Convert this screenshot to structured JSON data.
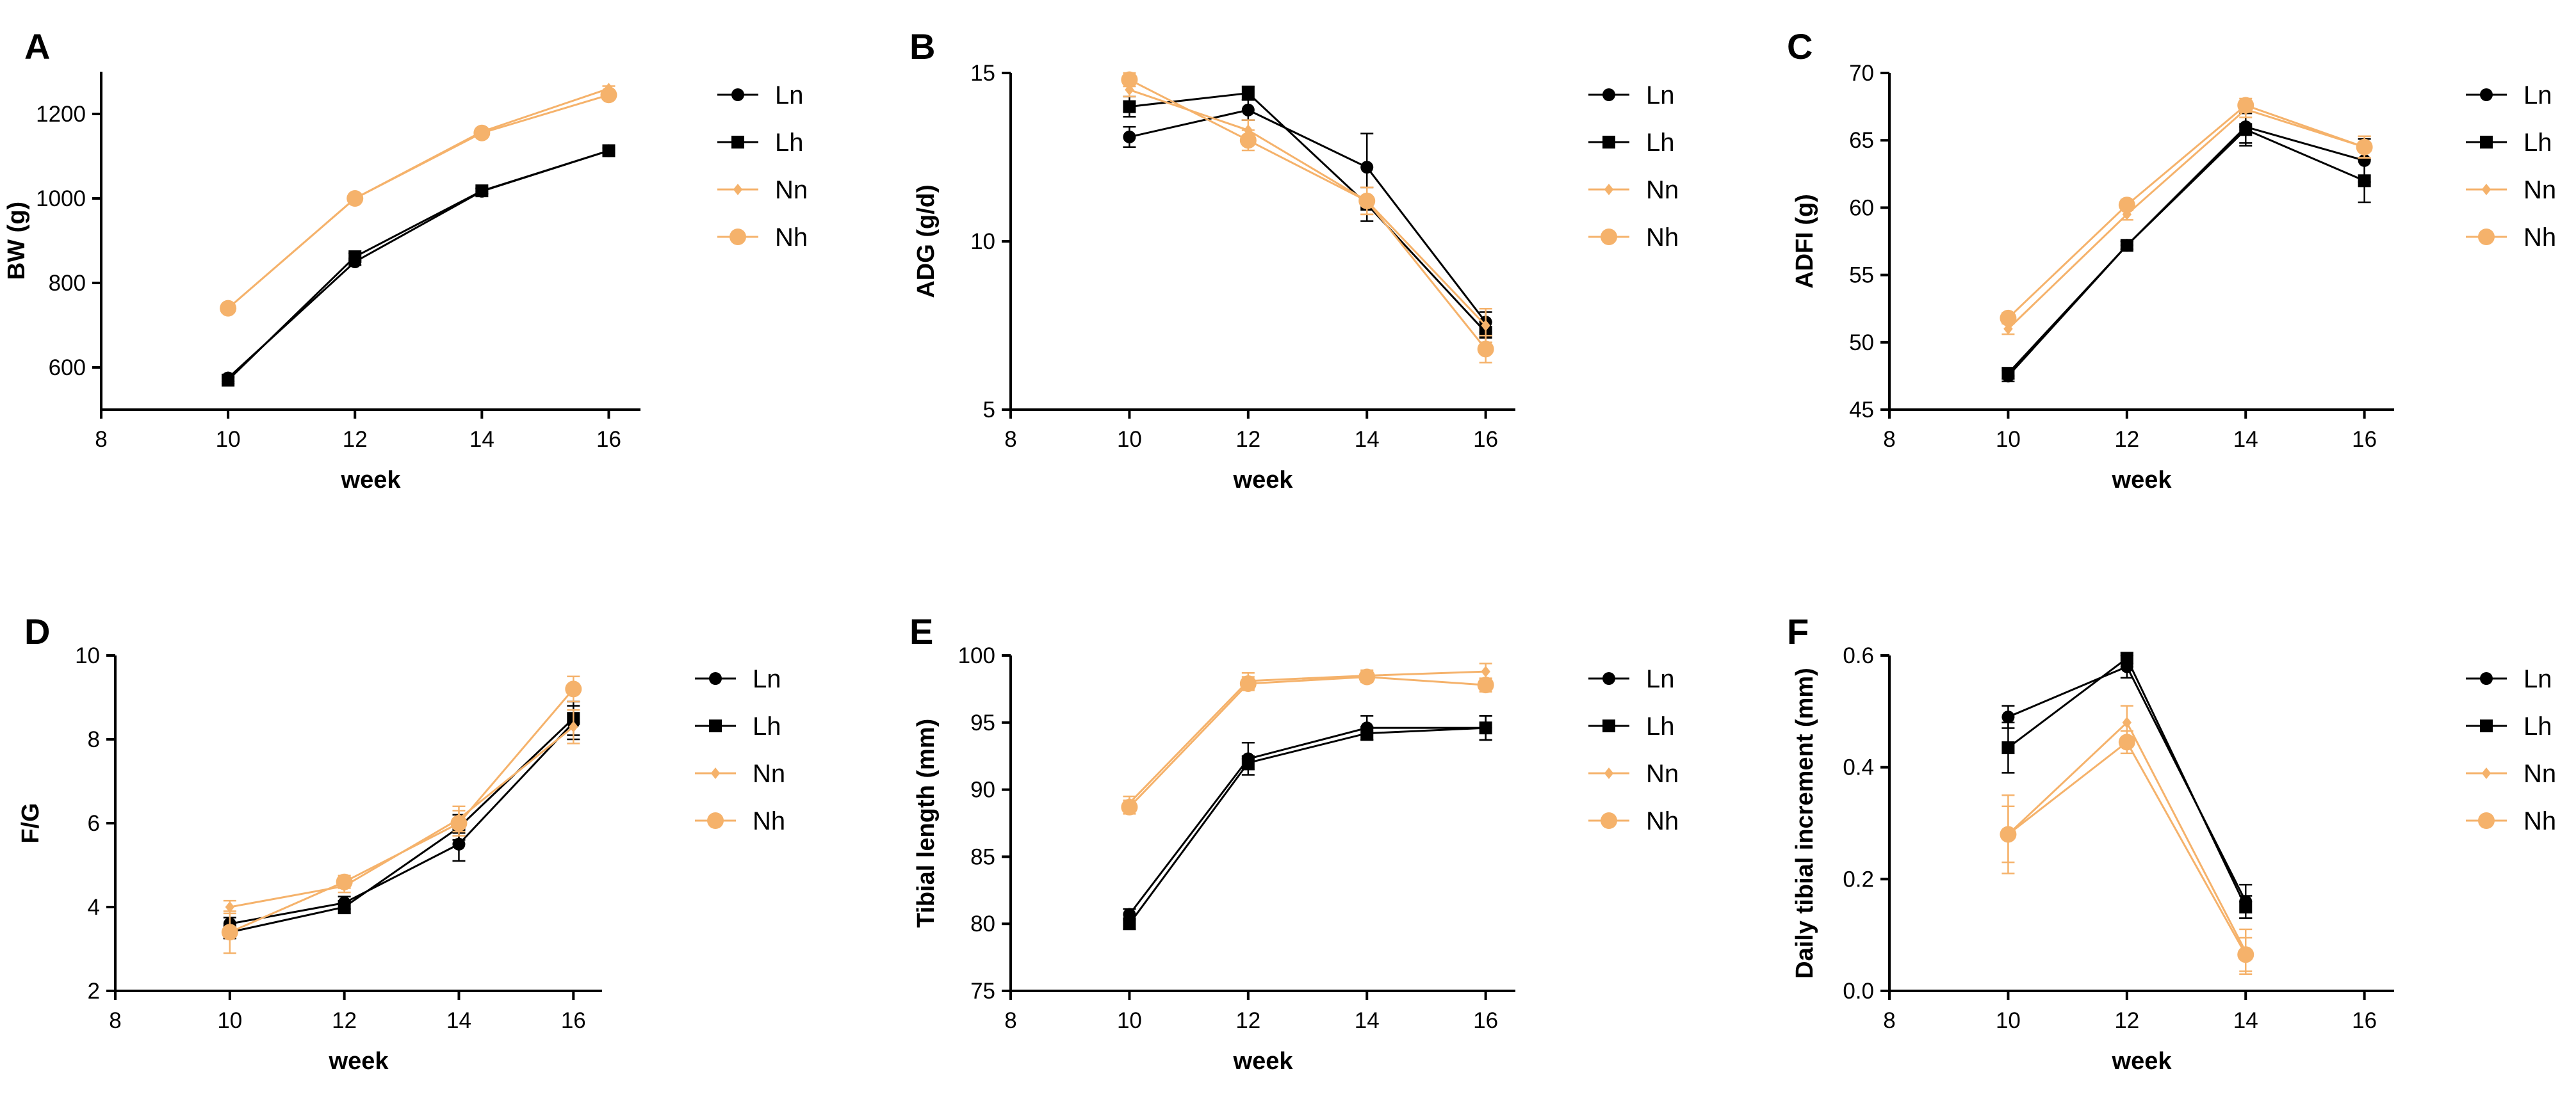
{
  "colors": {
    "L": "#000000",
    "N": "#f5b26b"
  },
  "chart_data": [
    {
      "panel": "A",
      "type": "line",
      "ylabel": "BW (g)",
      "xlabel": "week",
      "xlim": [
        8,
        16.5
      ],
      "ylim": [
        500,
        1300
      ],
      "xticks": [
        "8",
        "10",
        "12",
        "14",
        "16"
      ],
      "yticks": [
        "600",
        "800",
        "1000",
        "1200"
      ],
      "legend": [
        "Ln",
        "Lh",
        "Nn",
        "Nh"
      ],
      "x": [
        10,
        12,
        14,
        16
      ],
      "series": [
        {
          "name": "Ln",
          "values": [
            575,
            850,
            1017,
            1113
          ],
          "err": [
            8,
            8,
            6,
            6
          ]
        },
        {
          "name": "Lh",
          "values": [
            570,
            862,
            1018,
            1113
          ],
          "err": [
            8,
            8,
            6,
            6
          ]
        },
        {
          "name": "Nn",
          "values": [
            740,
            1000,
            1158,
            1260
          ],
          "err": [
            5,
            5,
            6,
            6
          ]
        },
        {
          "name": "Nh",
          "values": [
            740,
            1000,
            1155,
            1245
          ],
          "err": [
            5,
            5,
            6,
            6
          ]
        }
      ]
    },
    {
      "panel": "B",
      "type": "line",
      "ylabel": "ADG (g/d)",
      "xlabel": "week",
      "xlim": [
        8,
        16.5
      ],
      "ylim": [
        5,
        15
      ],
      "xticks": [
        "8",
        "10",
        "12",
        "14",
        "16"
      ],
      "yticks": [
        "5",
        "10",
        "15"
      ],
      "legend": [
        "Ln",
        "Lh",
        "Nn",
        "Nh"
      ],
      "x": [
        10,
        12,
        14,
        16
      ],
      "series": [
        {
          "name": "Ln",
          "values": [
            13.1,
            13.9,
            12.2,
            7.6
          ],
          "err": [
            0.3,
            0.3,
            1.0,
            0.3
          ]
        },
        {
          "name": "Lh",
          "values": [
            14.0,
            14.4,
            11.1,
            7.3
          ],
          "err": [
            0.3,
            0.2,
            0.5,
            0.3
          ]
        },
        {
          "name": "Nn",
          "values": [
            14.5,
            13.3,
            11.2,
            7.5
          ],
          "err": [
            0.2,
            0.3,
            0.4,
            0.5
          ]
        },
        {
          "name": "Nh",
          "values": [
            14.8,
            13.0,
            11.2,
            6.8
          ],
          "err": [
            0.2,
            0.3,
            0.4,
            0.4
          ]
        }
      ]
    },
    {
      "panel": "C",
      "type": "line",
      "ylabel": "ADFI (g)",
      "xlabel": "week",
      "xlim": [
        8,
        16.5
      ],
      "ylim": [
        45,
        70
      ],
      "xticks": [
        "8",
        "10",
        "12",
        "14",
        "16"
      ],
      "yticks": [
        "45",
        "50",
        "55",
        "60",
        "65",
        "70"
      ],
      "legend": [
        "Ln",
        "Lh",
        "Nn",
        "Nh"
      ],
      "x": [
        10,
        12,
        14,
        16
      ],
      "series": [
        {
          "name": "Ln",
          "values": [
            47.5,
            57.2,
            66.0,
            63.5
          ],
          "err": [
            0.4,
            0.3,
            1.2,
            1.6
          ]
        },
        {
          "name": "Lh",
          "values": [
            47.7,
            57.2,
            65.8,
            62.0
          ],
          "err": [
            0.4,
            0.3,
            1.2,
            1.6
          ]
        },
        {
          "name": "Nn",
          "values": [
            51.0,
            59.5,
            67.3,
            64.5
          ],
          "err": [
            0.4,
            0.4,
            0.6,
            0.8
          ]
        },
        {
          "name": "Nh",
          "values": [
            51.8,
            60.2,
            67.6,
            64.5
          ],
          "err": [
            0.4,
            0.4,
            0.5,
            0.8
          ]
        }
      ]
    },
    {
      "panel": "D",
      "type": "line",
      "ylabel": "F/G",
      "xlabel": "week",
      "xlim": [
        8,
        16.5
      ],
      "ylim": [
        2,
        10
      ],
      "xticks": [
        "8",
        "10",
        "12",
        "14",
        "16"
      ],
      "yticks": [
        "2",
        "4",
        "6",
        "8",
        "10"
      ],
      "legend": [
        "Ln",
        "Lh",
        "Nn",
        "Nh"
      ],
      "x": [
        10,
        12,
        14,
        16
      ],
      "series": [
        {
          "name": "Ln",
          "values": [
            3.6,
            4.1,
            5.5,
            8.4
          ],
          "err": [
            0.15,
            0.15,
            0.4,
            0.4
          ]
        },
        {
          "name": "Lh",
          "values": [
            3.4,
            4.0,
            5.9,
            8.5
          ],
          "err": [
            0.15,
            0.15,
            0.3,
            0.4
          ]
        },
        {
          "name": "Nn",
          "values": [
            4.0,
            4.5,
            6.1,
            8.3
          ],
          "err": [
            0.15,
            0.15,
            0.3,
            0.4
          ]
        },
        {
          "name": "Nh",
          "values": [
            3.4,
            4.6,
            6.0,
            9.2
          ],
          "err": [
            0.5,
            0.15,
            0.3,
            0.3
          ]
        }
      ]
    },
    {
      "panel": "E",
      "type": "line",
      "ylabel": "Tibial length (mm)",
      "xlabel": "week",
      "xlim": [
        8,
        16.5
      ],
      "ylim": [
        75,
        100
      ],
      "xticks": [
        "8",
        "10",
        "12",
        "14",
        "16"
      ],
      "yticks": [
        "75",
        "80",
        "85",
        "90",
        "95",
        "100"
      ],
      "legend": [
        "Ln",
        "Lh",
        "Nn",
        "Nh"
      ],
      "x": [
        10,
        12,
        14,
        16
      ],
      "series": [
        {
          "name": "Ln",
          "values": [
            80.7,
            92.3,
            94.6,
            94.6
          ],
          "err": [
            0.4,
            1.2,
            0.9,
            0.9
          ]
        },
        {
          "name": "Lh",
          "values": [
            80.0,
            92.0,
            94.2,
            94.6
          ],
          "err": [
            0.4,
            0.5,
            0.5,
            0.9
          ]
        },
        {
          "name": "Nn",
          "values": [
            89.0,
            98.1,
            98.5,
            98.8
          ],
          "err": [
            0.5,
            0.6,
            0.4,
            0.6
          ]
        },
        {
          "name": "Nh",
          "values": [
            88.7,
            97.9,
            98.4,
            97.8
          ],
          "err": [
            0.5,
            0.5,
            0.4,
            0.5
          ]
        }
      ]
    },
    {
      "panel": "F",
      "type": "line",
      "ylabel": "Daily tibial increment (mm)",
      "xlabel": "week",
      "xlim": [
        8,
        16.5
      ],
      "ylim": [
        0,
        0.6
      ],
      "xticks": [
        "8",
        "10",
        "12",
        "14",
        "16"
      ],
      "yticks": [
        "0.0",
        "0.2",
        "0.4",
        "0.6"
      ],
      "legend": [
        "Ln",
        "Lh",
        "Nn",
        "Nh"
      ],
      "x": [
        10,
        12,
        14
      ],
      "series": [
        {
          "name": "Ln",
          "values": [
            0.49,
            0.58,
            0.16
          ],
          "err": [
            0.02,
            0.02,
            0.03
          ]
        },
        {
          "name": "Lh",
          "values": [
            0.435,
            0.595,
            0.15
          ],
          "err": [
            0.045,
            0.01,
            0.02
          ]
        },
        {
          "name": "Nn",
          "values": [
            0.28,
            0.48,
            0.07
          ],
          "err": [
            0.07,
            0.03,
            0.04
          ]
        },
        {
          "name": "Nh",
          "values": [
            0.28,
            0.445,
            0.065
          ],
          "err": [
            0.05,
            0.02,
            0.03
          ]
        }
      ]
    }
  ]
}
